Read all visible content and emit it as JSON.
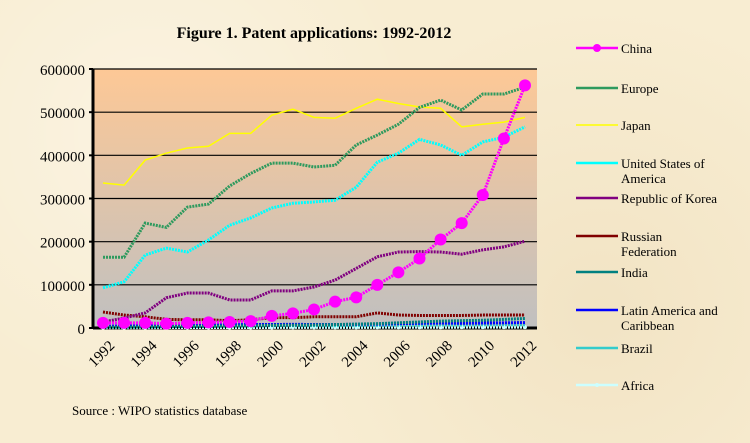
{
  "chart_data": {
    "type": "line",
    "title": "Figure 1. Patent applications: 1992-2012",
    "source": "Source : WIPO statistics database",
    "xlabel": "",
    "ylabel": "",
    "x": [
      1992,
      1993,
      1994,
      1995,
      1996,
      1997,
      1998,
      1999,
      2000,
      2001,
      2002,
      2003,
      2004,
      2005,
      2006,
      2007,
      2008,
      2009,
      2010,
      2011,
      2012
    ],
    "x_tick_labels": [
      "1992",
      "1994",
      "1996",
      "1998",
      "2000",
      "2002",
      "2004",
      "2006",
      "2008",
      "2010",
      "2012"
    ],
    "ylim": [
      0,
      600000
    ],
    "y_tick_labels": [
      "0",
      "100000",
      "200000",
      "300000",
      "400000",
      "500000",
      "600000"
    ],
    "y_ticks": [
      0,
      100000,
      200000,
      300000,
      400000,
      500000,
      600000
    ],
    "grid": "horizontal",
    "legend_placement": "right",
    "series": [
      {
        "name": "China",
        "color": "#ff00ff",
        "marker": "circle",
        "values": [
          12000,
          12000,
          12000,
          10000,
          12000,
          13000,
          14000,
          16000,
          28000,
          34000,
          43000,
          61000,
          71000,
          100000,
          129000,
          161000,
          205000,
          243000,
          308000,
          439000,
          562000
        ]
      },
      {
        "name": "Europe",
        "color": "#2e9a5e",
        "values": [
          164000,
          164000,
          243000,
          233000,
          280000,
          287000,
          329000,
          358000,
          382000,
          382000,
          373000,
          377000,
          424000,
          447000,
          472000,
          511000,
          528000,
          505000,
          542000,
          542000,
          558000
        ]
      },
      {
        "name": "Japan",
        "color": "#ffff00",
        "values": [
          336000,
          331000,
          389000,
          405000,
          417000,
          421000,
          451000,
          451000,
          493000,
          507000,
          488000,
          486000,
          509000,
          530000,
          520000,
          512000,
          509000,
          466000,
          472000,
          477000,
          488000
        ]
      },
      {
        "name": "United States of America",
        "label_lines": [
          "United States of",
          "America"
        ],
        "color": "#00ffff",
        "values": [
          93000,
          107000,
          169000,
          185000,
          176000,
          204000,
          238000,
          255000,
          278000,
          289000,
          292000,
          296000,
          326000,
          384000,
          405000,
          437000,
          424000,
          400000,
          431000,
          442000,
          466000
        ]
      },
      {
        "name": "Republic of Korea",
        "color": "#800080",
        "values": [
          14000,
          23000,
          35000,
          70000,
          81000,
          81000,
          65000,
          65000,
          86000,
          86000,
          95000,
          111000,
          138000,
          165000,
          176000,
          177000,
          176000,
          171000,
          181000,
          188000,
          201000
        ]
      },
      {
        "name": "Russian Federation",
        "label_lines": [
          "Russian",
          "Federation"
        ],
        "color": "#800000",
        "values": [
          37000,
          30000,
          26000,
          20000,
          19000,
          19000,
          17000,
          19000,
          24000,
          24000,
          26000,
          26000,
          26000,
          35000,
          30000,
          29000,
          29000,
          29000,
          30000,
          30000,
          30000
        ]
      },
      {
        "name": "India",
        "color": "#008080",
        "values": [
          2000,
          2000,
          2500,
          3000,
          3500,
          4000,
          4500,
          5000,
          6000,
          6500,
          7000,
          8000,
          9000,
          10000,
          12000,
          14000,
          16000,
          17000,
          18000,
          20000,
          22000
        ]
      },
      {
        "name": "Latin America and Caribbean",
        "label_lines": [
          "Latin America and",
          "Caribbean"
        ],
        "color": "#0000ff",
        "values": [
          4000,
          4500,
          5000,
          5500,
          6000,
          7000,
          7500,
          8000,
          8000,
          8500,
          8000,
          8000,
          8500,
          9000,
          10000,
          11000,
          11500,
          11000,
          11500,
          12000,
          12500
        ]
      },
      {
        "name": "Brazil",
        "color": "#33cccc",
        "values": [
          2500,
          3000,
          3000,
          3500,
          3500,
          4000,
          4500,
          5000,
          5500,
          5500,
          5500,
          5500,
          6000,
          6000,
          6500,
          6500,
          7000,
          7000,
          7500,
          7500,
          7500
        ]
      },
      {
        "name": "Africa",
        "color": "#ccffff",
        "marker": "dot",
        "values": [
          1000,
          1000,
          1000,
          1000,
          1200,
          1200,
          1200,
          1300,
          1300,
          1400,
          1400,
          1500,
          1500,
          1600,
          1700,
          1800,
          1800,
          1900,
          2000,
          2000,
          2100
        ]
      }
    ]
  }
}
